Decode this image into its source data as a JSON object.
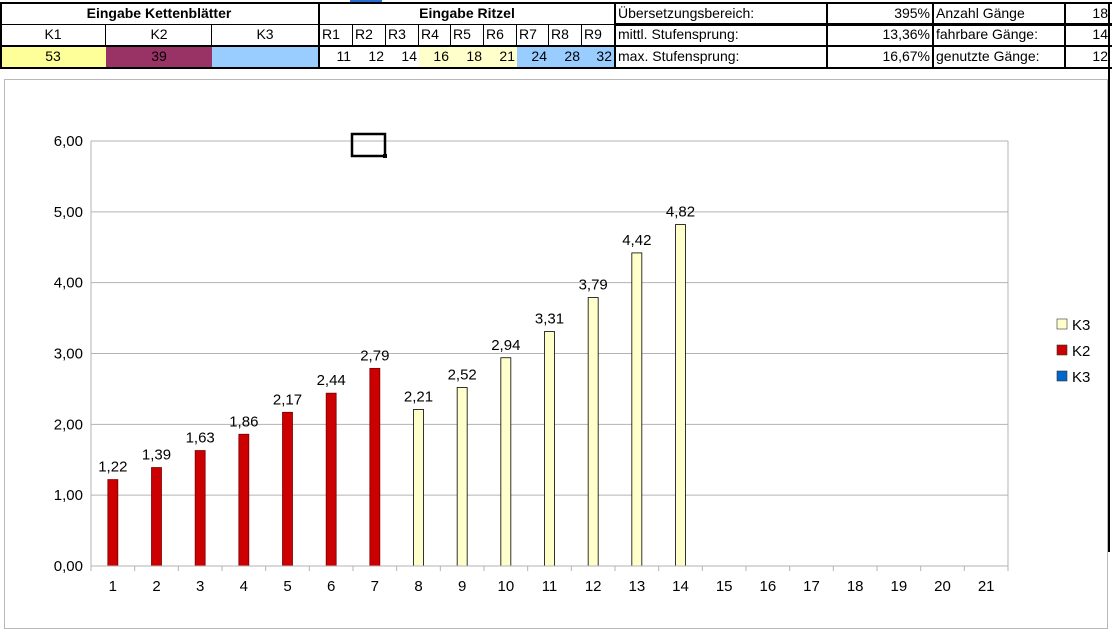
{
  "sheet": {
    "chainrings": {
      "header": "Eingabe Kettenblätter",
      "labels": [
        "K1",
        "K2",
        "K3"
      ],
      "values": [
        "53",
        "39",
        ""
      ],
      "colors": [
        "#ffff99",
        "#993366",
        "#99ccff"
      ]
    },
    "sprockets": {
      "header": "Eingabe Ritzel",
      "labels": [
        "R1",
        "R2",
        "R3",
        "R4",
        "R5",
        "R6",
        "R7",
        "R8",
        "R9"
      ],
      "values": [
        "11",
        "12",
        "14",
        "16",
        "18",
        "21",
        "24",
        "28",
        "32"
      ],
      "colors": [
        "#ffffff",
        "#ffffff",
        "#ffffff",
        "#ffffcc",
        "#ffffcc",
        "#ffffcc",
        "#99ccff",
        "#99ccff",
        "#99ccff"
      ]
    },
    "stats": [
      {
        "label": "Übersetzungsbereich:",
        "value": "395%"
      },
      {
        "label": "mittl. Stufensprung:",
        "value": "13,36%"
      },
      {
        "label": "max. Stufensprung:",
        "value": "16,67%"
      }
    ],
    "gears": [
      {
        "label": "Anzahl Gänge",
        "value": "18"
      },
      {
        "label": "fahrbare Gänge:",
        "value": "14"
      },
      {
        "label": "genutzte Gänge:",
        "value": "12"
      }
    ]
  },
  "chart_data": {
    "type": "bar",
    "categories": [
      "1",
      "2",
      "3",
      "4",
      "5",
      "6",
      "7",
      "8",
      "9",
      "10",
      "11",
      "12",
      "13",
      "14",
      "15",
      "16",
      "17",
      "18",
      "19",
      "20",
      "21"
    ],
    "values": [
      1.22,
      1.39,
      1.63,
      1.86,
      2.17,
      2.44,
      2.79,
      2.21,
      2.52,
      2.94,
      3.31,
      3.79,
      4.42,
      4.82,
      null,
      null,
      null,
      null,
      null,
      null,
      null
    ],
    "labels": [
      "1,22",
      "1,39",
      "1,63",
      "1,86",
      "2,17",
      "2,44",
      "2,79",
      "2,21",
      "2,52",
      "2,94",
      "3,31",
      "3,79",
      "4,42",
      "4,82"
    ],
    "series_of_bar": [
      "K2",
      "K2",
      "K2",
      "K2",
      "K2",
      "K2",
      "K2",
      "K3",
      "K3",
      "K3",
      "K3",
      "K3",
      "K3",
      "K3"
    ],
    "ylim": [
      0,
      6
    ],
    "yticks": [
      "0,00",
      "1,00",
      "2,00",
      "3,00",
      "4,00",
      "5,00",
      "6,00"
    ],
    "grid": true,
    "legend_position": "right",
    "legend": [
      {
        "name": "K3",
        "color": "#ffffcc"
      },
      {
        "name": "K2",
        "color": "#cc0000"
      },
      {
        "name": "K3",
        "color": "#0066cc"
      }
    ],
    "series_colors": {
      "K2": "#cc0000",
      "K3": "#ffffcc"
    }
  }
}
